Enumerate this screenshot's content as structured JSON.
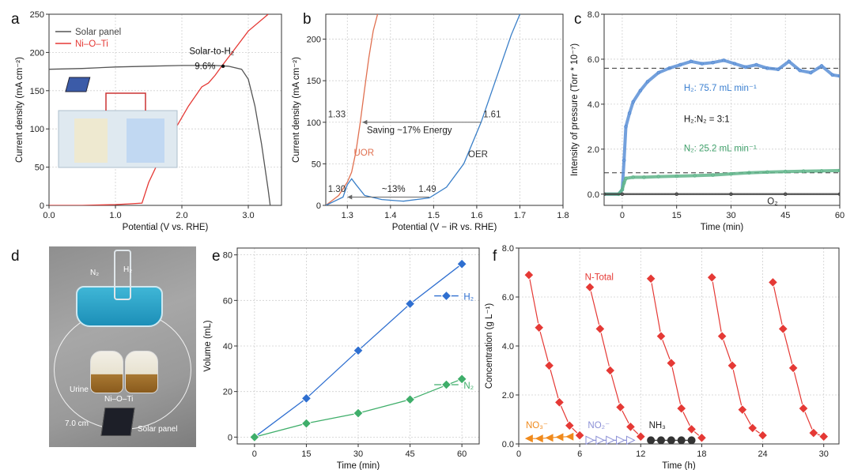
{
  "panels": {
    "a": "a",
    "b": "b",
    "c": "c",
    "d": "d",
    "e": "e",
    "f": "f"
  },
  "chart_data": [
    {
      "id": "a",
      "type": "line",
      "xlabel": "Potential (V vs. RHE)",
      "ylabel": "Current density (mA cm⁻²)",
      "xlim": [
        0,
        3.5
      ],
      "ylim": [
        0,
        250
      ],
      "xticks": [
        "0.0",
        "1.0",
        "2.0",
        "3.0"
      ],
      "xtick_values": [
        0,
        1,
        2,
        3
      ],
      "yticks": [
        "0",
        "50",
        "100",
        "150",
        "200",
        "250"
      ],
      "ytick_values": [
        0,
        50,
        100,
        150,
        200,
        250
      ],
      "legend": "top-left",
      "series": [
        {
          "name": "Solar panel",
          "color": "#555555",
          "x": [
            0,
            0.5,
            1.0,
            1.5,
            2.0,
            2.5,
            2.7,
            2.9,
            3.0,
            3.1,
            3.2,
            3.3,
            3.33
          ],
          "y": [
            178,
            179,
            181,
            182,
            183,
            183,
            182,
            178,
            165,
            130,
            80,
            20,
            0
          ]
        },
        {
          "name": "Ni–O–Ti",
          "color": "#e53935",
          "x": [
            0,
            0.5,
            1.0,
            1.2,
            1.4,
            1.5,
            1.8,
            2.1,
            2.3,
            2.4,
            2.5,
            2.6,
            2.8,
            3.0,
            3.3
          ],
          "y": [
            0,
            0,
            1,
            2,
            3,
            30,
            85,
            130,
            155,
            160,
            170,
            182,
            205,
            228,
            250
          ]
        }
      ],
      "annotations": [
        {
          "text": "Solar-to-H₂",
          "x": 2.6,
          "y": 193
        },
        {
          "text": "9.6%",
          "x": 2.55,
          "y": 183
        }
      ]
    },
    {
      "id": "b",
      "type": "line",
      "xlabel": "Potential (V − iR vs. RHE)",
      "ylabel": "Current density (mA cm⁻²)",
      "xlim": [
        1.25,
        1.8
      ],
      "ylim": [
        0,
        230
      ],
      "xticks": [
        "1.3",
        "1.4",
        "1.5",
        "1.6",
        "1.7",
        "1.8"
      ],
      "xtick_values": [
        1.3,
        1.4,
        1.5,
        1.6,
        1.7,
        1.8
      ],
      "yticks": [
        "0",
        "50",
        "100",
        "150",
        "200"
      ],
      "ytick_values": [
        0,
        50,
        100,
        150,
        200
      ],
      "series": [
        {
          "name": "UOR",
          "color": "#e07050",
          "x": [
            1.25,
            1.28,
            1.3,
            1.31,
            1.32,
            1.33,
            1.34,
            1.35,
            1.36,
            1.37
          ],
          "y": [
            0,
            12,
            28,
            40,
            65,
            100,
            140,
            178,
            210,
            230
          ]
        },
        {
          "name": "OER",
          "color": "#3a7fc8",
          "x": [
            1.25,
            1.29,
            1.3,
            1.31,
            1.32,
            1.34,
            1.38,
            1.43,
            1.49,
            1.53,
            1.57,
            1.61,
            1.65,
            1.68,
            1.7
          ],
          "y": [
            0,
            10,
            25,
            32,
            25,
            12,
            7,
            5,
            9,
            22,
            50,
            100,
            160,
            205,
            230
          ]
        }
      ],
      "annotations": [
        {
          "text": "1.33"
        },
        {
          "text": "1.61"
        },
        {
          "text": "1.30"
        },
        {
          "text": "1.49"
        },
        {
          "text": "Saving ~17% Energy"
        },
        {
          "text": "~13%"
        },
        {
          "text": "UOR"
        },
        {
          "text": "OER"
        }
      ]
    },
    {
      "id": "c",
      "type": "scatter",
      "xlabel": "Time (min)",
      "ylabel": "Intensity of pressure (Torr * 10⁻⁷)",
      "xlim": [
        -5,
        60
      ],
      "ylim": [
        -0.5,
        8
      ],
      "xticks": [
        "0",
        "15",
        "30",
        "45",
        "60"
      ],
      "xtick_values": [
        0,
        15,
        30,
        45,
        60
      ],
      "yticks": [
        "0.0",
        "2.0",
        "4.0",
        "6.0",
        "8.0"
      ],
      "ytick_values": [
        0,
        2,
        4,
        6,
        8
      ],
      "reference_lines": [
        5.6,
        0.95
      ],
      "series": [
        {
          "name": "H₂",
          "color": "#5b8fd6",
          "x": [
            -5,
            -1,
            0,
            0.5,
            1,
            2,
            3,
            5,
            7,
            10,
            13,
            16,
            19,
            22,
            25,
            28,
            31,
            34,
            37,
            40,
            43,
            46,
            49,
            52,
            55,
            58,
            60
          ],
          "y": [
            0,
            0,
            0.2,
            1.5,
            3.0,
            3.6,
            4.1,
            4.6,
            5.0,
            5.4,
            5.6,
            5.75,
            5.9,
            5.8,
            5.85,
            5.95,
            5.8,
            5.65,
            5.75,
            5.6,
            5.55,
            5.9,
            5.5,
            5.4,
            5.7,
            5.3,
            5.25
          ]
        },
        {
          "name": "N₂",
          "color": "#5fb58a",
          "x": [
            -5,
            -1,
            0,
            0.5,
            1,
            3,
            6,
            10,
            15,
            20,
            25,
            30,
            35,
            40,
            45,
            50,
            55,
            60
          ],
          "y": [
            0,
            0,
            0.2,
            0.5,
            0.7,
            0.75,
            0.75,
            0.78,
            0.8,
            0.82,
            0.85,
            0.9,
            0.95,
            0.98,
            1.0,
            1.02,
            1.03,
            1.05
          ]
        },
        {
          "name": "O₂",
          "color": "#444444",
          "x": [
            -5,
            0,
            15,
            30,
            45,
            60
          ],
          "y": [
            0,
            0,
            0,
            0,
            0,
            0
          ]
        }
      ],
      "annotations": [
        {
          "text": "H₂: 75.7 mL min⁻¹"
        },
        {
          "text": "H₂:N₂ = 3:1"
        },
        {
          "text": "N₂: 25.2 mL min⁻¹"
        },
        {
          "text": "O₂"
        }
      ]
    },
    {
      "id": "e",
      "type": "line",
      "xlabel": "Time (min)",
      "ylabel": "Volume (mL)",
      "xlim": [
        -5,
        65
      ],
      "ylim": [
        -3,
        83
      ],
      "xticks": [
        "0",
        "15",
        "30",
        "45",
        "60"
      ],
      "xtick_values": [
        0,
        15,
        30,
        45,
        60
      ],
      "yticks": [
        "0",
        "20",
        "40",
        "60",
        "80"
      ],
      "ytick_values": [
        0,
        20,
        40,
        60,
        80
      ],
      "categories": [
        0,
        15,
        30,
        45,
        60
      ],
      "series": [
        {
          "name": "H₂",
          "color": "#2f6fd0",
          "values": [
            0,
            17,
            38,
            58.5,
            76
          ]
        },
        {
          "name": "N₂",
          "color": "#3fae6a",
          "values": [
            0,
            6,
            10.5,
            16.5,
            25.5
          ]
        }
      ]
    },
    {
      "id": "f",
      "type": "line",
      "xlabel": "Time (h)",
      "ylabel": "Concentration (g L⁻¹)",
      "xlim": [
        0,
        31.5
      ],
      "ylim": [
        0,
        8
      ],
      "xticks": [
        "0",
        "6",
        "12",
        "18",
        "24",
        "30"
      ],
      "xtick_values": [
        0,
        6,
        12,
        18,
        24,
        30
      ],
      "yticks": [
        "0.0",
        "2.0",
        "4.0",
        "6.0",
        "8.0"
      ],
      "ytick_values": [
        0,
        2,
        4,
        6,
        8
      ],
      "series": [
        {
          "name": "N-Total",
          "color": "#e53935",
          "cycles": [
            {
              "x": [
                1,
                2,
                3,
                4,
                5,
                6
              ],
              "y": [
                6.9,
                4.75,
                3.2,
                1.7,
                0.75,
                0.35
              ]
            },
            {
              "x": [
                7,
                8,
                9,
                10,
                11,
                12
              ],
              "y": [
                6.4,
                4.7,
                3.0,
                1.5,
                0.7,
                0.3
              ]
            },
            {
              "x": [
                13,
                14,
                15,
                16,
                17,
                18
              ],
              "y": [
                6.75,
                4.4,
                3.3,
                1.45,
                0.6,
                0.25
              ]
            },
            {
              "x": [
                19,
                20,
                21,
                22,
                23,
                24
              ],
              "y": [
                6.8,
                4.4,
                3.2,
                1.4,
                0.65,
                0.35
              ]
            },
            {
              "x": [
                25,
                26,
                27,
                28,
                29,
                30
              ],
              "y": [
                6.6,
                4.7,
                3.1,
                1.45,
                0.45,
                0.3
              ]
            }
          ]
        },
        {
          "name": "NO₃⁻",
          "color": "#f08a1c",
          "x": [
            1,
            2,
            3,
            4,
            5
          ],
          "y": [
            0.22,
            0.22,
            0.25,
            0.28,
            0.3
          ]
        },
        {
          "name": "NO₂⁻",
          "color": "#8a8fd6",
          "x": [
            7,
            8,
            9,
            10,
            11
          ],
          "y": [
            0.15,
            0.15,
            0.15,
            0.15,
            0.15
          ]
        },
        {
          "name": "NH₃",
          "color": "#333333",
          "x": [
            13,
            14,
            15,
            16,
            17
          ],
          "y": [
            0.15,
            0.15,
            0.15,
            0.15,
            0.15
          ]
        }
      ]
    }
  ],
  "photo": {
    "labels": {
      "n2": "N₂",
      "h2": "H₂",
      "urine": "Urine",
      "nioti": "Ni–O–Ti",
      "size": "7.0 cm",
      "solar": "Solar panel"
    }
  }
}
